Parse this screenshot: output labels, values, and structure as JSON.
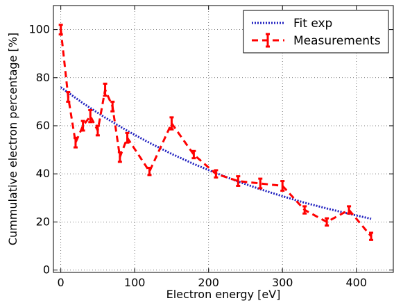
{
  "chart_data": {
    "type": "line",
    "xlabel": "Electron energy [eV]",
    "ylabel": "Cummulative electron percentage [%]",
    "xlim": [
      -10,
      450
    ],
    "ylim": [
      -1,
      110
    ],
    "xticks": [
      0,
      100,
      200,
      300,
      400
    ],
    "yticks": [
      0,
      20,
      40,
      60,
      80,
      100
    ],
    "grid": true,
    "legend_position": "top-right",
    "series": [
      {
        "name": "Fit exp",
        "style": "dotted",
        "color": "#1f1fbf",
        "x": [
          0,
          30,
          60,
          90,
          120,
          150,
          180,
          210,
          240,
          270,
          300,
          330,
          360,
          390,
          420
        ],
        "y": [
          76,
          69.4,
          63.4,
          57.9,
          52.9,
          48.3,
          44.1,
          40.3,
          36.8,
          33.6,
          30.7,
          28.0,
          25.6,
          23.4,
          21.3
        ]
      },
      {
        "name": "Measurements",
        "style": "dashed-errorbar",
        "color": "#ff0000",
        "x": [
          0,
          10,
          20,
          30,
          40,
          50,
          60,
          70,
          80,
          90,
          120,
          150,
          180,
          210,
          240,
          270,
          300,
          330,
          360,
          390,
          420
        ],
        "y": [
          100,
          72,
          53,
          60,
          64,
          58,
          75,
          68,
          47,
          55,
          41,
          61,
          48,
          40,
          37,
          36,
          35,
          25,
          20,
          25,
          14
        ],
        "yerr": [
          2,
          2,
          2,
          2,
          2.5,
          2,
          2.5,
          2,
          2,
          2,
          1.5,
          2.5,
          1.5,
          1.5,
          2,
          2,
          2,
          1.5,
          1.5,
          1.5,
          1.5
        ]
      }
    ]
  }
}
